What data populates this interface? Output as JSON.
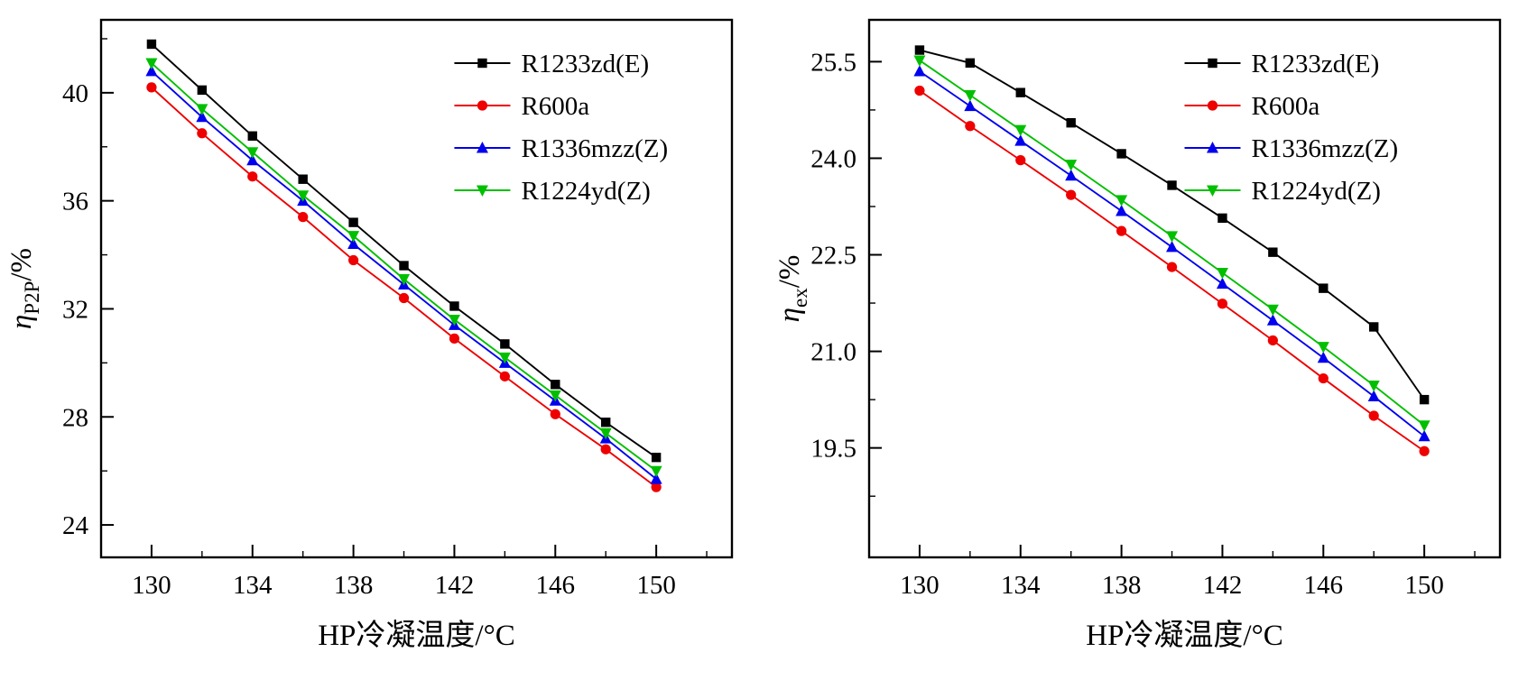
{
  "page": {
    "background": "#ffffff",
    "description_left_chart": "P2P efficiency vs HP condensing temperature",
    "description_right_chart": "Exergy efficiency vs HP condensing temperature"
  },
  "chart_data": [
    {
      "type": "line",
      "title": "",
      "xlabel": "HP冷凝温度/°C",
      "ylabel": {
        "symbol": "η",
        "subscript": "P2P",
        "suffix": "/%"
      },
      "x": [
        130,
        132,
        134,
        136,
        138,
        140,
        142,
        144,
        146,
        148,
        150
      ],
      "xlim": [
        128,
        153
      ],
      "ylim": [
        22.8,
        42.7
      ],
      "xticks": [
        130,
        134,
        138,
        142,
        146,
        150
      ],
      "xminor": [
        132,
        136,
        140,
        144,
        148,
        152
      ],
      "yticks": [
        24,
        28,
        32,
        36,
        40
      ],
      "ytick_labels": [
        "24",
        "28",
        "32",
        "36",
        "40"
      ],
      "yminor": [
        26,
        30,
        34,
        38,
        42
      ],
      "grid": false,
      "legend_position": "top-right",
      "legend_x_frac": 0.56,
      "series": [
        {
          "name": "R1233zd(E)",
          "color": "#000000",
          "marker": "square",
          "values": [
            41.8,
            40.1,
            38.4,
            36.8,
            35.2,
            33.6,
            32.1,
            30.7,
            29.2,
            27.8,
            26.5
          ]
        },
        {
          "name": "R600a",
          "color": "#ee0000",
          "marker": "circle",
          "values": [
            40.2,
            38.5,
            36.9,
            35.4,
            33.8,
            32.4,
            30.9,
            29.5,
            28.1,
            26.8,
            25.4
          ]
        },
        {
          "name": "R1336mzz(Z)",
          "color": "#0000ee",
          "marker": "triangle-up",
          "values": [
            40.8,
            39.1,
            37.5,
            36.0,
            34.4,
            32.9,
            31.4,
            30.0,
            28.6,
            27.2,
            25.7
          ]
        },
        {
          "name": "R1224yd(Z)",
          "color": "#00bf00",
          "marker": "triangle-down",
          "values": [
            41.1,
            39.4,
            37.8,
            36.2,
            34.7,
            33.1,
            31.6,
            30.2,
            28.8,
            27.4,
            26.0
          ]
        }
      ]
    },
    {
      "type": "line",
      "title": "",
      "xlabel": "HP冷凝温度/°C",
      "ylabel": {
        "symbol": "η",
        "subscript": "ex",
        "suffix": "/%"
      },
      "x": [
        130,
        132,
        134,
        136,
        138,
        140,
        142,
        144,
        146,
        148,
        150
      ],
      "xlim": [
        128,
        153
      ],
      "ylim": [
        17.8,
        26.15
      ],
      "xticks": [
        130,
        134,
        138,
        142,
        146,
        150
      ],
      "xminor": [
        132,
        136,
        140,
        144,
        148,
        152
      ],
      "yticks": [
        19.5,
        21.0,
        22.5,
        24.0,
        25.5
      ],
      "ytick_labels": [
        "19.5",
        "21.0",
        "22.5",
        "24.0",
        "25.5"
      ],
      "yminor": [
        18.75,
        20.25,
        21.75,
        23.25,
        24.75
      ],
      "grid": false,
      "legend_position": "top-right",
      "legend_x_frac": 0.5,
      "series": [
        {
          "name": "R1233zd(E)",
          "color": "#000000",
          "marker": "square",
          "values": [
            25.68,
            25.48,
            25.02,
            24.55,
            24.07,
            23.58,
            23.07,
            22.54,
            21.98,
            21.38,
            20.25
          ]
        },
        {
          "name": "R600a",
          "color": "#ee0000",
          "marker": "circle",
          "values": [
            25.05,
            24.5,
            23.97,
            23.43,
            22.87,
            22.31,
            21.74,
            21.17,
            20.58,
            20.0,
            19.45
          ]
        },
        {
          "name": "R1336mzz(Z)",
          "color": "#0000ee",
          "marker": "triangle-up",
          "values": [
            25.35,
            24.81,
            24.27,
            23.73,
            23.18,
            22.62,
            22.05,
            21.48,
            20.9,
            20.3,
            19.68
          ]
        },
        {
          "name": "R1224yd(Z)",
          "color": "#00bf00",
          "marker": "triangle-down",
          "values": [
            25.52,
            24.98,
            24.44,
            23.9,
            23.35,
            22.79,
            22.22,
            21.65,
            21.07,
            20.47,
            19.85
          ]
        }
      ]
    }
  ]
}
